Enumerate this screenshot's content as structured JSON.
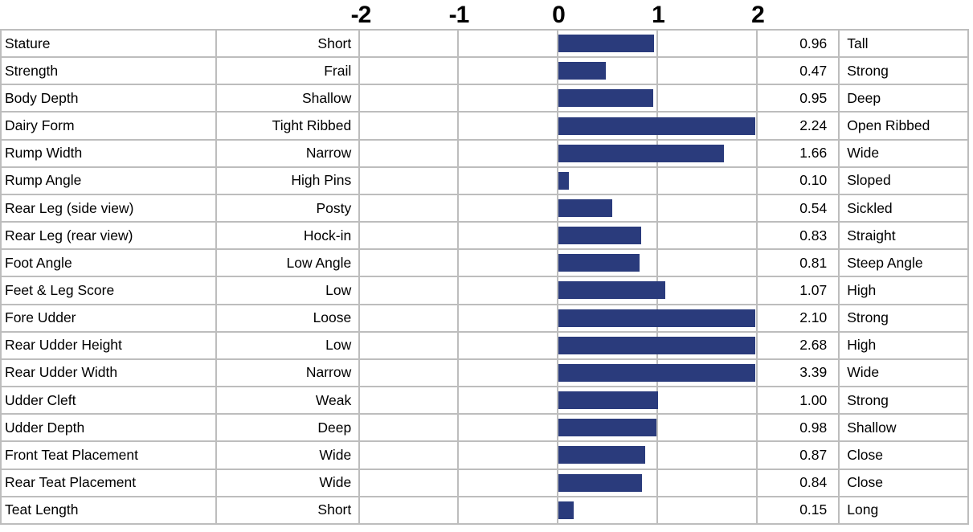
{
  "colors": {
    "bar": "#2a3b7c",
    "grid": "#bdbdbd",
    "text": "#000000",
    "background": "#ffffff"
  },
  "chart_data": {
    "type": "bar",
    "orientation": "horizontal",
    "title": "",
    "xlabel": "",
    "xlim": [
      -2,
      2
    ],
    "x_ticks": [
      "-2",
      "-1",
      "0",
      "1",
      "2"
    ],
    "grid": true,
    "bars_clipped_at": 2,
    "value_decimals": 2,
    "rows": [
      {
        "trait": "Stature",
        "low": "Short",
        "value": 0.96,
        "high": "Tall"
      },
      {
        "trait": "Strength",
        "low": "Frail",
        "value": 0.47,
        "high": "Strong"
      },
      {
        "trait": "Body Depth",
        "low": "Shallow",
        "value": 0.95,
        "high": "Deep"
      },
      {
        "trait": "Dairy Form",
        "low": "Tight Ribbed",
        "value": 2.24,
        "high": "Open Ribbed"
      },
      {
        "trait": "Rump Width",
        "low": "Narrow",
        "value": 1.66,
        "high": "Wide"
      },
      {
        "trait": "Rump Angle",
        "low": "High Pins",
        "value": 0.1,
        "high": "Sloped"
      },
      {
        "trait": "Rear Leg (side view)",
        "low": "Posty",
        "value": 0.54,
        "high": "Sickled"
      },
      {
        "trait": "Rear Leg (rear view)",
        "low": "Hock-in",
        "value": 0.83,
        "high": "Straight"
      },
      {
        "trait": "Foot Angle",
        "low": "Low Angle",
        "value": 0.81,
        "high": "Steep Angle"
      },
      {
        "trait": "Feet & Leg Score",
        "low": "Low",
        "value": 1.07,
        "high": "High"
      },
      {
        "trait": "Fore Udder",
        "low": "Loose",
        "value": 2.1,
        "high": "Strong"
      },
      {
        "trait": "Rear Udder Height",
        "low": "Low",
        "value": 2.68,
        "high": "High"
      },
      {
        "trait": "Rear Udder Width",
        "low": "Narrow",
        "value": 3.39,
        "high": "Wide"
      },
      {
        "trait": "Udder Cleft",
        "low": "Weak",
        "value": 1.0,
        "high": "Strong"
      },
      {
        "trait": "Udder Depth",
        "low": "Deep",
        "value": 0.98,
        "high": "Shallow"
      },
      {
        "trait": "Front Teat Placement",
        "low": "Wide",
        "value": 0.87,
        "high": "Close"
      },
      {
        "trait": "Rear Teat Placement",
        "low": "Wide",
        "value": 0.84,
        "high": "Close"
      },
      {
        "trait": "Teat Length",
        "low": "Short",
        "value": 0.15,
        "high": "Long"
      }
    ]
  }
}
